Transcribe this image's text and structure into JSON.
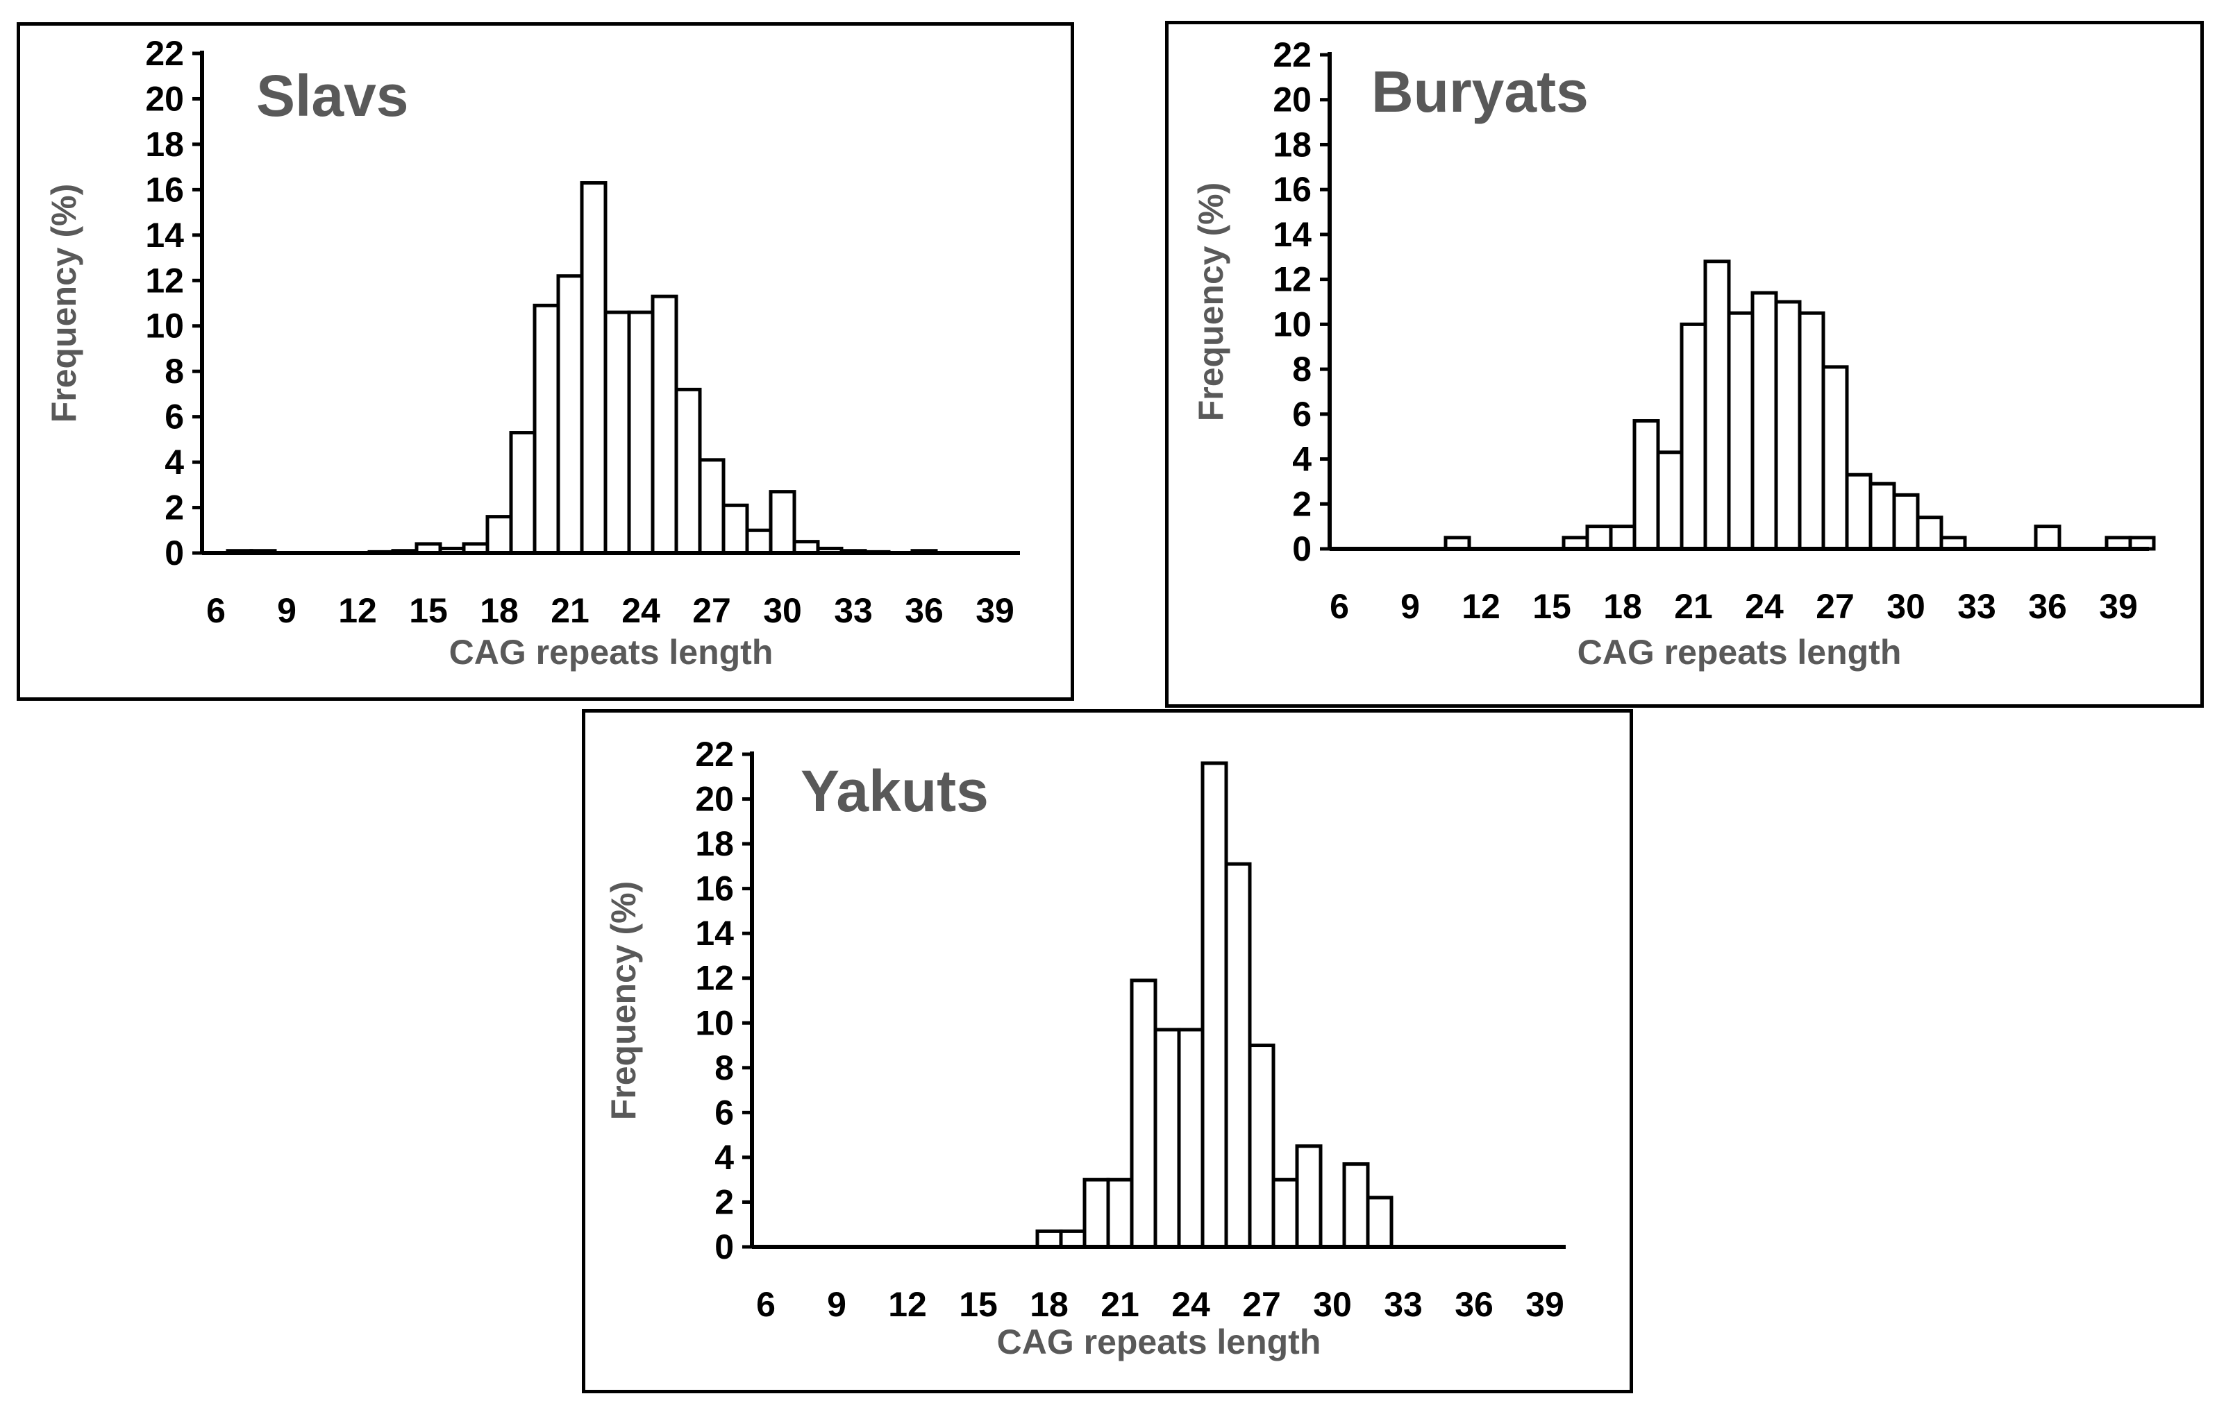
{
  "chart_data": [
    {
      "type": "bar",
      "title": "Slavs",
      "xlabel": "CAG repeats length",
      "ylabel": "Frequency (%)",
      "ylim": [
        0,
        22
      ],
      "yticks": [
        0,
        2,
        4,
        6,
        8,
        10,
        12,
        14,
        16,
        18,
        20,
        22
      ],
      "xticks": [
        6,
        9,
        12,
        15,
        18,
        21,
        24,
        27,
        30,
        33,
        36,
        39
      ],
      "xlim": [
        6,
        40
      ],
      "grid": false,
      "x": [
        7,
        8,
        13,
        14,
        15,
        16,
        17,
        18,
        19,
        20,
        21,
        22,
        23,
        24,
        25,
        26,
        27,
        28,
        29,
        30,
        31,
        32,
        33,
        34,
        36
      ],
      "values": [
        0.1,
        0.1,
        0.05,
        0.1,
        0.4,
        0.2,
        0.4,
        1.6,
        5.3,
        10.9,
        12.2,
        16.3,
        10.6,
        10.6,
        11.3,
        7.2,
        4.1,
        2.1,
        1.0,
        2.7,
        0.5,
        0.2,
        0.1,
        0.05,
        0.1
      ]
    },
    {
      "type": "bar",
      "title": "Buryats",
      "xlabel": "CAG repeats length",
      "ylabel": "Frequency (%)",
      "ylim": [
        0,
        22
      ],
      "yticks": [
        0,
        2,
        4,
        6,
        8,
        10,
        12,
        14,
        16,
        18,
        20,
        22
      ],
      "xticks": [
        6,
        9,
        12,
        15,
        18,
        21,
        24,
        27,
        30,
        33,
        36,
        39
      ],
      "xlim": [
        6,
        40.5
      ],
      "grid": false,
      "x": [
        11,
        16,
        17,
        18,
        19,
        20,
        21,
        22,
        23,
        24,
        25,
        26,
        27,
        28,
        29,
        30,
        31,
        32,
        36,
        39,
        40
      ],
      "values": [
        0.5,
        0.5,
        1.0,
        1.0,
        5.7,
        4.3,
        10.0,
        12.8,
        10.5,
        11.4,
        11.0,
        10.5,
        8.1,
        3.3,
        2.9,
        2.4,
        1.4,
        0.5,
        1.0,
        0.5,
        0.5
      ]
    },
    {
      "type": "bar",
      "title": "Yakuts",
      "xlabel": "CAG repeats length",
      "ylabel": "Frequency (%)",
      "ylim": [
        0,
        22
      ],
      "yticks": [
        0,
        2,
        4,
        6,
        8,
        10,
        12,
        14,
        16,
        18,
        20,
        22
      ],
      "xticks": [
        6,
        9,
        12,
        15,
        18,
        21,
        24,
        27,
        30,
        33,
        36,
        39
      ],
      "xlim": [
        6,
        40.5
      ],
      "grid": false,
      "x": [
        18,
        19,
        20,
        21,
        22,
        23,
        24,
        25,
        26,
        27,
        28,
        29,
        30,
        31,
        32
      ],
      "values": [
        0.7,
        0.7,
        3.0,
        3.0,
        11.9,
        9.7,
        9.7,
        21.6,
        17.1,
        9.0,
        3.0,
        4.5,
        0.0,
        3.7,
        2.2
      ]
    }
  ]
}
